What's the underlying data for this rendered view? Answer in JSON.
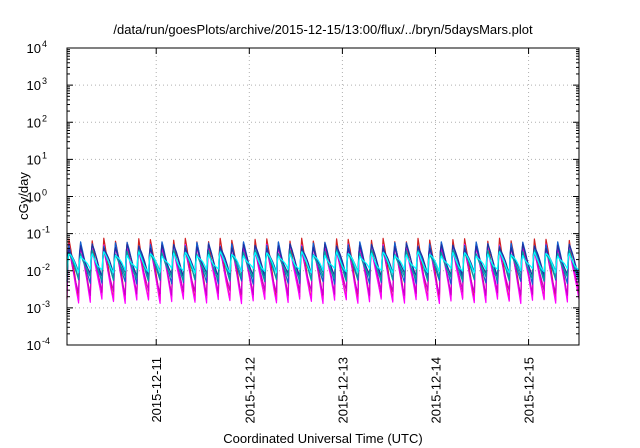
{
  "chart_data": {
    "type": "line",
    "title": "/data/run/goesPlots/archive/2015-12-15/13:00/flux/../bryn/5daysMars.plot",
    "xlabel": "Coordinated Universal Time (UTC)",
    "ylabel": "cGy/day",
    "x_range": [
      "2015-12-10T01:00",
      "2015-12-15T13:00"
    ],
    "ylim": [
      0.0001,
      10000
    ],
    "yscale": "log",
    "grid": true,
    "x_ticks": [
      {
        "x": "2015-12-11T00:00",
        "label": "2015-12-11"
      },
      {
        "x": "2015-12-12T00:00",
        "label": "2015-12-12"
      },
      {
        "x": "2015-12-13T00:00",
        "label": "2015-12-13"
      },
      {
        "x": "2015-12-14T00:00",
        "label": "2015-12-14"
      },
      {
        "x": "2015-12-15T00:00",
        "label": "2015-12-15"
      }
    ],
    "y_ticks": [
      {
        "exp": -4,
        "label_base": "10",
        "label_exp": "-4"
      },
      {
        "exp": -3,
        "label_base": "10",
        "label_exp": "-3"
      },
      {
        "exp": -2,
        "label_base": "10",
        "label_exp": "-2"
      },
      {
        "exp": -1,
        "label_base": "10",
        "label_exp": "-1"
      },
      {
        "exp": 0,
        "label_base": "10",
        "label_exp": "0"
      },
      {
        "exp": 1,
        "label_base": "10",
        "label_exp": "1"
      },
      {
        "exp": 2,
        "label_base": "10",
        "label_exp": "2"
      },
      {
        "exp": 3,
        "label_base": "10",
        "label_exp": "3"
      },
      {
        "exp": 4,
        "label_base": "10",
        "label_exp": "4"
      }
    ],
    "sawtooth_period_hours": 3,
    "series": [
      {
        "color": "#d02020",
        "peak": 0.08,
        "trough": 0.0018
      },
      {
        "color": "#ff00ff",
        "peak": 0.055,
        "trough": 0.0015
      },
      {
        "color": "#cc00cc",
        "peak": 0.045,
        "trough": 0.0025
      },
      {
        "color": "#1060d0",
        "peak": 0.06,
        "trough": 0.005
      },
      {
        "color": "#2030a0",
        "peak": 0.05,
        "trough": 0.008
      },
      {
        "color": "#00a0a0",
        "peak": 0.035,
        "trough": 0.006
      },
      {
        "color": "#00ffff",
        "peak": 0.03,
        "trough": 0.01
      }
    ]
  }
}
